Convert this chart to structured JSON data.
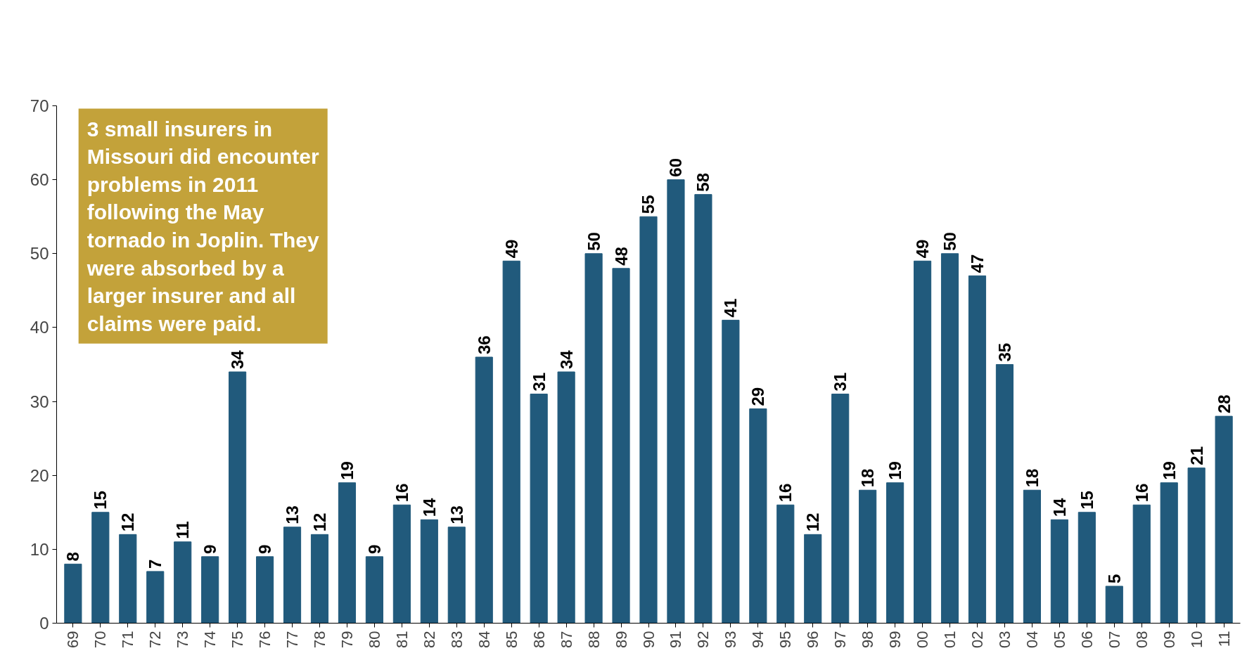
{
  "chart_data": {
    "type": "bar",
    "categories": [
      "69",
      "70",
      "71",
      "72",
      "73",
      "74",
      "75",
      "76",
      "77",
      "78",
      "79",
      "80",
      "81",
      "82",
      "83",
      "84",
      "85",
      "86",
      "87",
      "88",
      "89",
      "90",
      "91",
      "92",
      "93",
      "94",
      "95",
      "96",
      "97",
      "98",
      "99",
      "00",
      "01",
      "02",
      "03",
      "04",
      "05",
      "06",
      "07",
      "08",
      "09",
      "10",
      "11"
    ],
    "values": [
      8,
      15,
      12,
      7,
      11,
      9,
      34,
      9,
      13,
      12,
      19,
      9,
      16,
      14,
      13,
      36,
      49,
      31,
      34,
      50,
      48,
      55,
      60,
      58,
      41,
      29,
      16,
      12,
      31,
      18,
      19,
      49,
      50,
      47,
      35,
      18,
      14,
      15,
      5,
      16,
      19,
      21,
      28
    ],
    "color": "#215a7c",
    "ylim": [
      0,
      70
    ],
    "yticks": [
      0,
      10,
      20,
      30,
      40,
      50,
      60,
      70
    ],
    "grid": false,
    "data_labels": true,
    "annotations": [
      "3 small insurers in Missouri did encounter problems in 2011 following the May tornado in Joplin. They were absorbed by a larger insurer and all claims were paid."
    ]
  }
}
